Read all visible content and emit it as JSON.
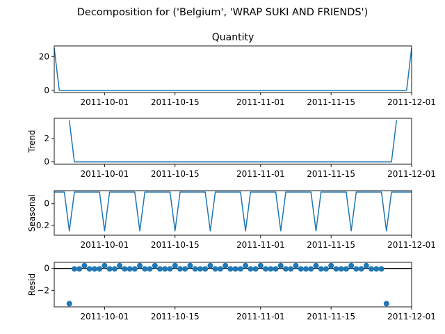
{
  "figure": {
    "suptitle": "Decomposition for ('Belgium', 'WRAP SUKI AND FRIENDS')"
  },
  "colors": {
    "line": "#1f77b4",
    "axis": "#000000"
  },
  "chart_data": [
    {
      "type": "line",
      "title": "Quantity",
      "ylabel": "",
      "x_start": "2011-09-21",
      "x_end": "2011-12-01",
      "xticks": [
        "2011-10-01",
        "2011-10-15",
        "2011-11-01",
        "2011-11-15",
        "2011-12-01"
      ],
      "ylim": [
        -1.3,
        26.3
      ],
      "yticks": [
        0,
        20
      ],
      "series": [
        {
          "points": [
            [
              "2011-09-21",
              25
            ],
            [
              "2011-09-22",
              0
            ],
            [
              "2011-11-30",
              0
            ],
            [
              "2011-12-01",
              25
            ]
          ]
        }
      ]
    },
    {
      "type": "line",
      "title": "",
      "ylabel": "Trend",
      "x_start": "2011-09-21",
      "x_end": "2011-12-01",
      "xticks": [
        "2011-10-01",
        "2011-10-15",
        "2011-11-01",
        "2011-11-15",
        "2011-12-01"
      ],
      "ylim": [
        -0.2,
        3.75
      ],
      "yticks": [
        0,
        2
      ],
      "series": [
        {
          "points": [
            [
              "2011-09-24",
              3.57
            ],
            [
              "2011-09-25",
              0
            ],
            [
              "2011-11-27",
              0
            ],
            [
              "2011-11-28",
              3.57
            ]
          ]
        }
      ]
    },
    {
      "type": "line",
      "title": "",
      "ylabel": "Seasonal",
      "x_start": "2011-09-21",
      "x_end": "2011-12-01",
      "xticks": [
        "2011-10-01",
        "2011-10-15",
        "2011-11-01",
        "2011-11-15",
        "2011-12-01"
      ],
      "ylim": [
        -0.29,
        0.12
      ],
      "yticks": [
        0.0,
        -0.2
      ],
      "weekly_pattern": [
        0.107,
        0.107,
        0.107,
        -0.25,
        0.107,
        0.107,
        0.107
      ],
      "pattern_first_day": "2011-09-21"
    },
    {
      "type": "scatter",
      "title": "",
      "ylabel": "Resid",
      "x_start": "2011-09-21",
      "x_end": "2011-12-01",
      "xticks": [
        "2011-10-01",
        "2011-10-15",
        "2011-11-01",
        "2011-11-15",
        "2011-12-01"
      ],
      "ylim": [
        -3.5,
        0.55
      ],
      "yticks": [
        0,
        -2
      ],
      "baseline": 0,
      "resid_start": "2011-09-24",
      "resid_values": [
        -3.21,
        -0.05,
        -0.05,
        0.25,
        -0.05,
        -0.05,
        -0.05,
        0.25,
        -0.05,
        -0.05,
        0.25,
        -0.05,
        -0.05,
        -0.05,
        0.25,
        -0.05,
        -0.05,
        0.25,
        -0.05,
        -0.05,
        -0.05,
        0.25,
        -0.05,
        -0.05,
        0.25,
        -0.05,
        -0.05,
        -0.05,
        0.25,
        -0.05,
        -0.05,
        0.25,
        -0.05,
        -0.05,
        -0.05,
        0.25,
        -0.05,
        -0.05,
        0.25,
        -0.05,
        -0.05,
        -0.05,
        0.25,
        -0.05,
        -0.05,
        0.25,
        -0.05,
        -0.05,
        -0.05,
        0.25,
        -0.05,
        -0.05,
        0.25,
        -0.05,
        -0.05,
        -0.05,
        0.25,
        -0.05,
        -0.05,
        0.25,
        -0.05,
        -0.05,
        -0.05,
        -3.21
      ]
    }
  ]
}
